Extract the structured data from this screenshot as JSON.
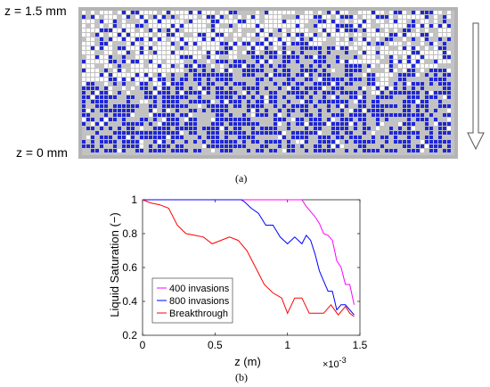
{
  "panel_a": {
    "top_label": "z = 1.5 mm",
    "bottom_label": "z = 0 mm",
    "caption": "(a)",
    "colors": {
      "liquid": "#1f27d6",
      "gas": "#ffffff",
      "solid": "#c2c2c2",
      "frame": "#b4b4b4"
    }
  },
  "panel_b": {
    "caption": "(b)"
  },
  "chart_data": {
    "type": "line",
    "xlabel": "z (m)",
    "ylabel": "Liquid Saturation (−)",
    "x_exponent_label": "×10",
    "x_exponent_power": "-3",
    "xlim": [
      0,
      0.0015
    ],
    "ylim": [
      0.2,
      1.0
    ],
    "xticks": [
      0,
      0.0005,
      0.001,
      0.0015
    ],
    "xtick_labels": [
      "0",
      "0.5",
      "1",
      "1.5"
    ],
    "yticks": [
      0.2,
      0.4,
      0.6,
      0.8,
      1.0
    ],
    "ytick_labels": [
      "0.2",
      "0.4",
      "0.6",
      "0.8",
      "1"
    ],
    "grid": false,
    "legend_position": "bottom-left",
    "series": [
      {
        "name": "400 invasions",
        "color": "#ff00ff",
        "x": [
          0,
          0.0011,
          0.00113,
          0.00116,
          0.00119,
          0.00122,
          0.00125,
          0.00128,
          0.00131,
          0.00134,
          0.00137,
          0.0014,
          0.00143,
          0.00146
        ],
        "y": [
          1.0,
          1.0,
          0.96,
          0.93,
          0.9,
          0.86,
          0.8,
          0.79,
          0.76,
          0.64,
          0.6,
          0.5,
          0.5,
          0.38
        ]
      },
      {
        "name": "800 invasions",
        "color": "#0000ff",
        "x": [
          0,
          0.00068,
          0.0007,
          0.00075,
          0.0008,
          0.00085,
          0.0009,
          0.00095,
          0.001,
          0.00105,
          0.0011,
          0.00113,
          0.00116,
          0.00119,
          0.00122,
          0.00125,
          0.00128,
          0.00131,
          0.00134,
          0.00137,
          0.0014,
          0.00143,
          0.00146
        ],
        "y": [
          1.0,
          1.0,
          0.99,
          0.95,
          0.92,
          0.85,
          0.85,
          0.78,
          0.74,
          0.78,
          0.74,
          0.79,
          0.76,
          0.68,
          0.58,
          0.52,
          0.46,
          0.46,
          0.35,
          0.38,
          0.38,
          0.35,
          0.32
        ]
      },
      {
        "name": "Breakthrough",
        "color": "#ff0000",
        "x": [
          0,
          3e-05,
          6e-05,
          0.00012,
          0.00018,
          0.00024,
          0.0003,
          0.00036,
          0.00042,
          0.00048,
          0.00054,
          0.0006,
          0.00066,
          0.00072,
          0.00078,
          0.00084,
          0.0009,
          0.00096,
          0.001,
          0.00105,
          0.0011,
          0.00115,
          0.0012,
          0.00125,
          0.0013,
          0.00135,
          0.0014,
          0.00143,
          0.00146
        ],
        "y": [
          1.0,
          0.99,
          0.98,
          0.97,
          0.95,
          0.85,
          0.8,
          0.79,
          0.78,
          0.74,
          0.76,
          0.78,
          0.76,
          0.7,
          0.6,
          0.5,
          0.45,
          0.42,
          0.33,
          0.42,
          0.42,
          0.33,
          0.33,
          0.33,
          0.38,
          0.32,
          0.37,
          0.33,
          0.31
        ]
      }
    ]
  }
}
